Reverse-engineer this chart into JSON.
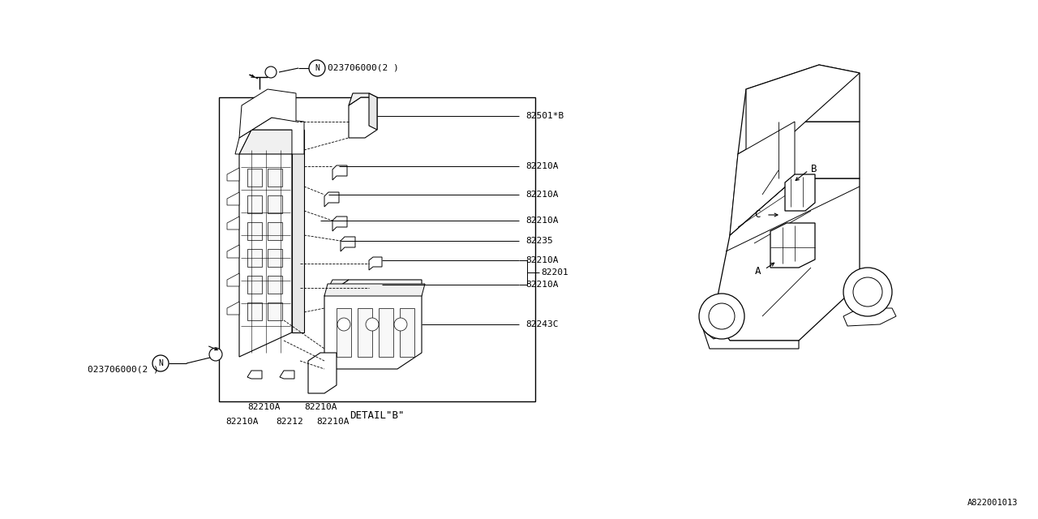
{
  "bg_color": "#ffffff",
  "line_color": "#000000",
  "fig_width": 12.8,
  "fig_height": 6.4,
  "dpi": 100,
  "watermark": "A822001013",
  "part_number_circle": "023706000(2 )",
  "detail_title": "DETAIL\"B\"",
  "main_label": "82201",
  "right_labels": [
    "82501*B",
    "82210A",
    "82210A",
    "82210A",
    "82235",
    "82210A",
    "82210A",
    "82243C"
  ],
  "bottom_labels_row1": [
    "82210A",
    "82210A"
  ],
  "bottom_labels_row2": [
    "82210A",
    "82212",
    "82210A"
  ],
  "font_size": 8,
  "font_size_title": 9,
  "font_size_wm": 7.5
}
